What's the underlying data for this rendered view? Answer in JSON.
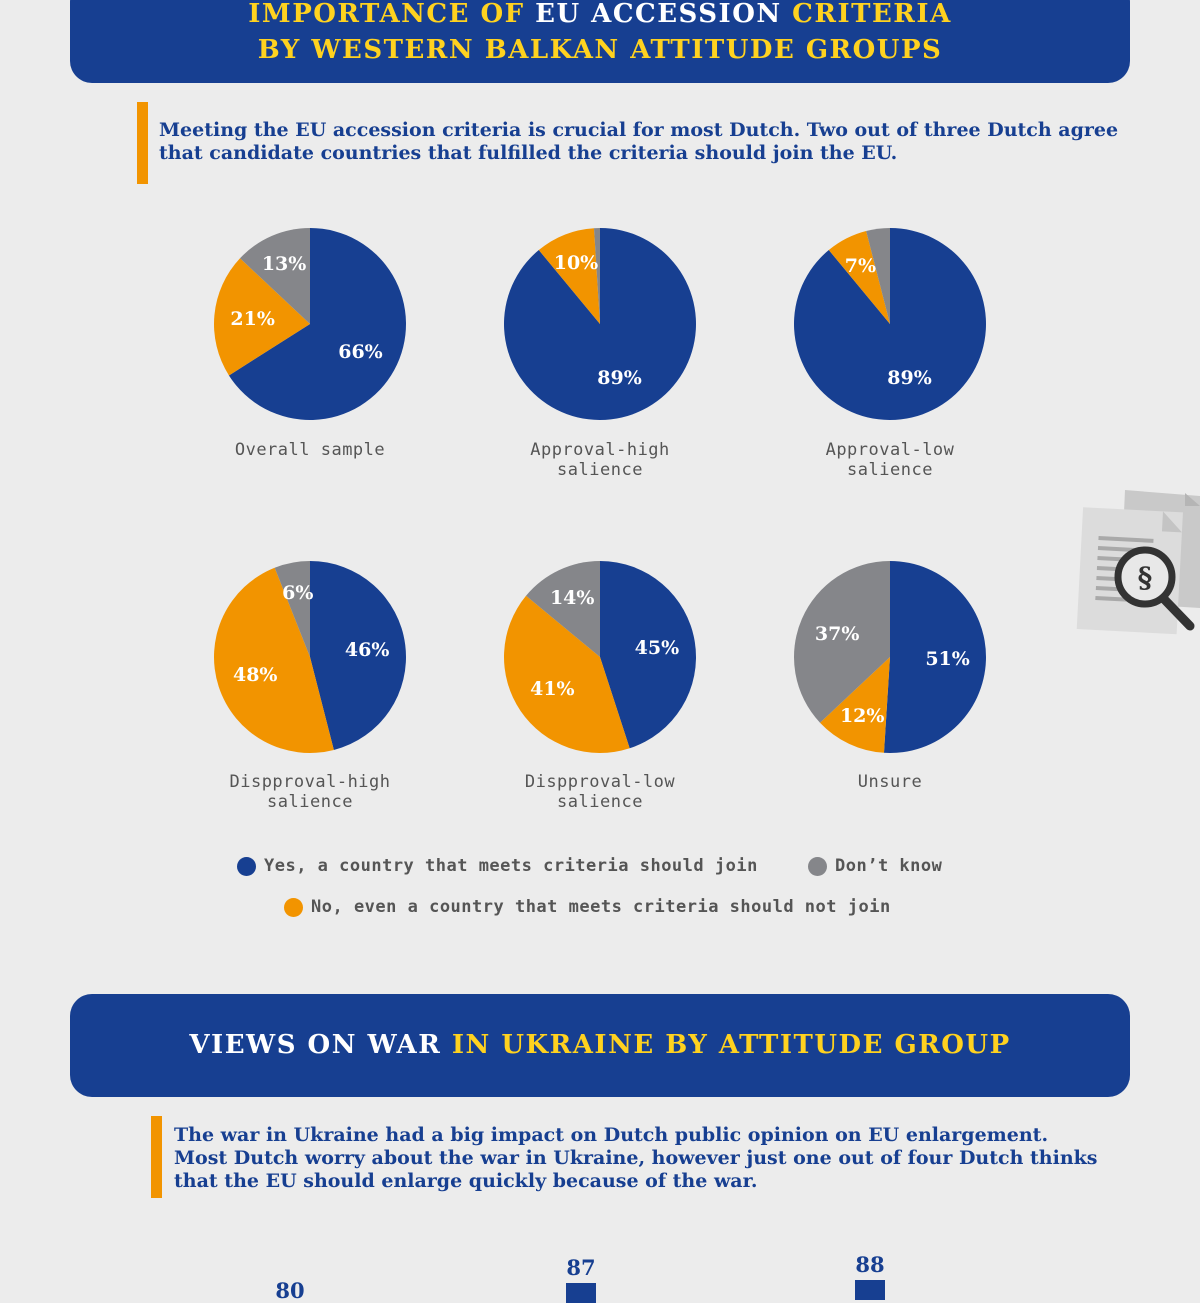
{
  "colors": {
    "yes": "#173f91",
    "no": "#f29400",
    "dont_know": "#85868a",
    "banner": "#173f91",
    "accent": "#ffd21f"
  },
  "section1": {
    "title_line1": {
      "part1": "IMPORTANCE OF ",
      "part2": "EU ACCESSION",
      "part3": " CRITERIA"
    },
    "title_line2": "BY WESTERN BALKAN ATTITUDE GROUPS",
    "callout_line1": "Meeting the EU accession criteria is crucial for most Dutch. Two out of three Dutch agree",
    "callout_line2": "that candidate countries that fulfilled the criteria should join the EU."
  },
  "chart_data": [
    {
      "type": "pie",
      "title": "Overall sample",
      "slices": [
        {
          "category": "Yes, a country that meets criteria should join",
          "value": 66,
          "label": "66%"
        },
        {
          "category": "No, even a country that meets criteria should not join",
          "value": 21,
          "label": "21%"
        },
        {
          "category": "Don’t know",
          "value": 13,
          "label": "13%"
        }
      ]
    },
    {
      "type": "pie",
      "title": "Approval-high salience",
      "slices": [
        {
          "category": "Yes, a country that meets criteria should join",
          "value": 89,
          "label": "89%"
        },
        {
          "category": "No, even a country that meets criteria should not join",
          "value": 10,
          "label": "10%"
        },
        {
          "category": "Don’t know",
          "value": 1,
          "label": ""
        }
      ]
    },
    {
      "type": "pie",
      "title": "Approval-low salience",
      "slices": [
        {
          "category": "Yes, a country that meets criteria should join",
          "value": 89,
          "label": "89%"
        },
        {
          "category": "No, even a country that meets criteria should not join",
          "value": 7,
          "label": "7%"
        },
        {
          "category": "Don’t know",
          "value": 4,
          "label": ""
        }
      ]
    },
    {
      "type": "pie",
      "title": "Dispproval-high salience",
      "slices": [
        {
          "category": "Yes, a country that meets criteria should join",
          "value": 46,
          "label": "46%"
        },
        {
          "category": "No, even a country that meets criteria should not join",
          "value": 48,
          "label": "48%"
        },
        {
          "category": "Don’t know",
          "value": 6,
          "label": "6%"
        }
      ]
    },
    {
      "type": "pie",
      "title": "Dispproval-low salience",
      "slices": [
        {
          "category": "Yes, a country that meets criteria should join",
          "value": 45,
          "label": "45%"
        },
        {
          "category": "No, even a country that meets criteria should not join",
          "value": 41,
          "label": "41%"
        },
        {
          "category": "Don’t know",
          "value": 14,
          "label": "14%"
        }
      ]
    },
    {
      "type": "pie",
      "title": "Unsure",
      "slices": [
        {
          "category": "Yes, a country that meets criteria should join",
          "value": 51,
          "label": "51%"
        },
        {
          "category": "No, even a country that meets criteria should not join",
          "value": 12,
          "label": "12%"
        },
        {
          "category": "Don’t know",
          "value": 37,
          "label": "37%"
        }
      ]
    },
    {
      "type": "bar",
      "values": [
        80,
        87,
        88
      ]
    }
  ],
  "pie_labels": [
    {
      "line1": "Overall sample",
      "line2": ""
    },
    {
      "line1": "Approval-high",
      "line2": "salience"
    },
    {
      "line1": "Approval-low",
      "line2": "salience"
    },
    {
      "line1": "Dispproval-high",
      "line2": "salience"
    },
    {
      "line1": "Dispproval-low",
      "line2": "salience"
    },
    {
      "line1": "Unsure",
      "line2": ""
    }
  ],
  "legend": {
    "yes": "Yes, a country that meets criteria should join",
    "dont_know": "Don’t know",
    "no": "No, even a country that meets criteria should not join"
  },
  "icons": {
    "document": "document-magnifier-paragraph-icon"
  },
  "section2": {
    "title_part1": "VIEWS ON WAR ",
    "title_part2": "IN UKRAINE BY ATTITUDE GROUP",
    "callout_line1": "The war in Ukraine had a big impact on Dutch public opinion on EU enlargement.",
    "callout_line2": "Most Dutch worry about the war in Ukraine, however just one out of four Dutch thinks",
    "callout_line3": "that the EU should enlarge quickly because of the war."
  },
  "bar_labels": [
    "80",
    "87",
    "88"
  ]
}
